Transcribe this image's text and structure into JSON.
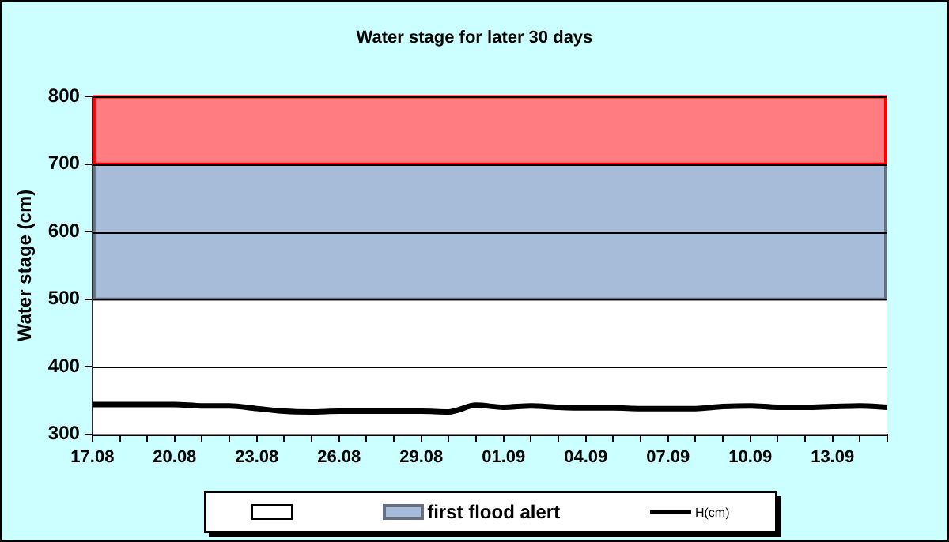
{
  "chart_data": {
    "type": "line",
    "title": "Water stage for later 30 days",
    "ylabel": "Water stage (cm)",
    "categories": [
      "17.08",
      null,
      null,
      "20.08",
      null,
      null,
      "23.08",
      null,
      null,
      "26.08",
      null,
      null,
      "29.08",
      null,
      null,
      "01.09",
      null,
      null,
      "04.09",
      null,
      null,
      "07.09",
      null,
      null,
      "10.09",
      null,
      null,
      "13.09",
      null,
      null
    ],
    "series": [
      {
        "name": "H(cm)",
        "color": "#000000",
        "values": [
          344,
          344,
          344,
          344,
          342,
          342,
          338,
          334,
          333,
          334,
          334,
          334,
          334,
          333,
          343,
          340,
          342,
          340,
          339,
          339,
          338,
          338,
          338,
          341,
          342,
          340,
          340,
          341,
          342,
          340
        ]
      }
    ],
    "ylim": [
      300,
      800
    ],
    "yticks": [
      300,
      400,
      500,
      600,
      700,
      800
    ],
    "grid": "y",
    "legend": "bottom",
    "marker": "none",
    "line_style": "solid",
    "bands": [
      {
        "axis": "y",
        "from": 300,
        "to": 500,
        "color": "#ffffff"
      },
      {
        "axis": "y",
        "from": 500,
        "to": 700,
        "label": "first flood alert",
        "color": "#a6bcd9"
      },
      {
        "axis": "y",
        "from": 700,
        "to": 800,
        "color": "#ff7c80"
      }
    ]
  }
}
